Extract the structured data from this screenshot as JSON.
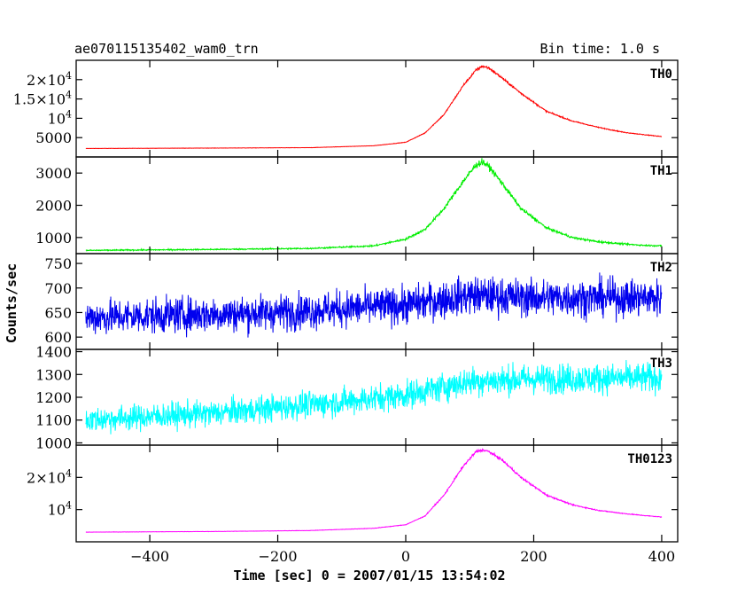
{
  "header": {
    "title": "ae070115135402_wam0_trn",
    "bin_time": "Bin time: 1.0 s"
  },
  "chart_data": {
    "type": "line",
    "xlabel": "Time [sec] 0 = 2007/01/15 13:54:02",
    "ylabel": "Counts/sec",
    "xlim": [
      -515,
      425
    ],
    "x_ticks": [
      {
        "value": -400,
        "label": "−400"
      },
      {
        "value": -200,
        "label": "−200"
      },
      {
        "value": 0,
        "label": "0"
      },
      {
        "value": 200,
        "label": "200"
      },
      {
        "value": 400,
        "label": "400"
      }
    ],
    "data_x_range": [
      -500,
      400
    ],
    "panels": [
      {
        "name": "TH0",
        "color": "#ff0000",
        "ylim": [
          0,
          25000
        ],
        "y_ticks": [
          {
            "value": 5000,
            "label": "5000"
          },
          {
            "value": 10000,
            "label": "10",
            "exp": "4"
          },
          {
            "value": 15000,
            "label": "1.5×10",
            "exp": "4"
          },
          {
            "value": 20000,
            "label": "2×10",
            "exp": "4"
          }
        ],
        "x": [
          -500,
          -300,
          -150,
          -50,
          0,
          30,
          60,
          90,
          110,
          120,
          130,
          150,
          180,
          220,
          260,
          300,
          340,
          370,
          400
        ],
        "y": [
          2200,
          2300,
          2400,
          2900,
          3800,
          6200,
          11000,
          18500,
          22500,
          23500,
          23000,
          20500,
          16500,
          11800,
          9300,
          7700,
          6400,
          5800,
          5300
        ],
        "noise": 0.015
      },
      {
        "name": "TH1",
        "color": "#00ee00",
        "ylim": [
          500,
          3500
        ],
        "y_ticks": [
          {
            "value": 1000,
            "label": "1000"
          },
          {
            "value": 2000,
            "label": "2000"
          },
          {
            "value": 3000,
            "label": "3000"
          }
        ],
        "x": [
          -500,
          -300,
          -150,
          -50,
          0,
          30,
          60,
          90,
          110,
          120,
          130,
          150,
          180,
          220,
          260,
          300,
          340,
          370,
          400
        ],
        "y": [
          600,
          630,
          660,
          740,
          950,
          1250,
          1900,
          2750,
          3250,
          3350,
          3200,
          2700,
          1900,
          1300,
          1000,
          870,
          800,
          760,
          740
        ],
        "noise": 0.03
      },
      {
        "name": "TH2",
        "color": "#0000ee",
        "ylim": [
          575,
          770
        ],
        "y_ticks": [
          {
            "value": 600,
            "label": "600"
          },
          {
            "value": 650,
            "label": "650"
          },
          {
            "value": 700,
            "label": "700"
          },
          {
            "value": 750,
            "label": "750"
          }
        ],
        "x": [
          -500,
          -200,
          0,
          100,
          200,
          400
        ],
        "y": [
          640,
          650,
          665,
          685,
          680,
          680
        ],
        "noise": 0.055
      },
      {
        "name": "TH3",
        "color": "#00ffff",
        "ylim": [
          990,
          1410
        ],
        "y_ticks": [
          {
            "value": 1000,
            "label": "1000"
          },
          {
            "value": 1100,
            "label": "1100"
          },
          {
            "value": 1200,
            "label": "1200"
          },
          {
            "value": 1300,
            "label": "1300"
          },
          {
            "value": 1400,
            "label": "1400"
          }
        ],
        "x": [
          -500,
          -300,
          -100,
          0,
          100,
          200,
          400
        ],
        "y": [
          1100,
          1130,
          1180,
          1210,
          1270,
          1280,
          1285
        ],
        "noise": 0.05
      },
      {
        "name": "TH0123",
        "color": "#ff00ff",
        "ylim": [
          0,
          30000
        ],
        "y_ticks": [
          {
            "value": 10000,
            "label": "10",
            "exp": "4"
          },
          {
            "value": 20000,
            "label": "2×10",
            "exp": "4"
          }
        ],
        "x": [
          -500,
          -300,
          -150,
          -50,
          0,
          30,
          60,
          90,
          110,
          120,
          130,
          150,
          180,
          220,
          260,
          300,
          340,
          370,
          400
        ],
        "y": [
          3000,
          3200,
          3500,
          4200,
          5300,
          8000,
          14500,
          23500,
          28000,
          28500,
          28000,
          25500,
          20000,
          14500,
          11500,
          9800,
          8800,
          8200,
          7700
        ],
        "noise": 0.015
      }
    ]
  }
}
